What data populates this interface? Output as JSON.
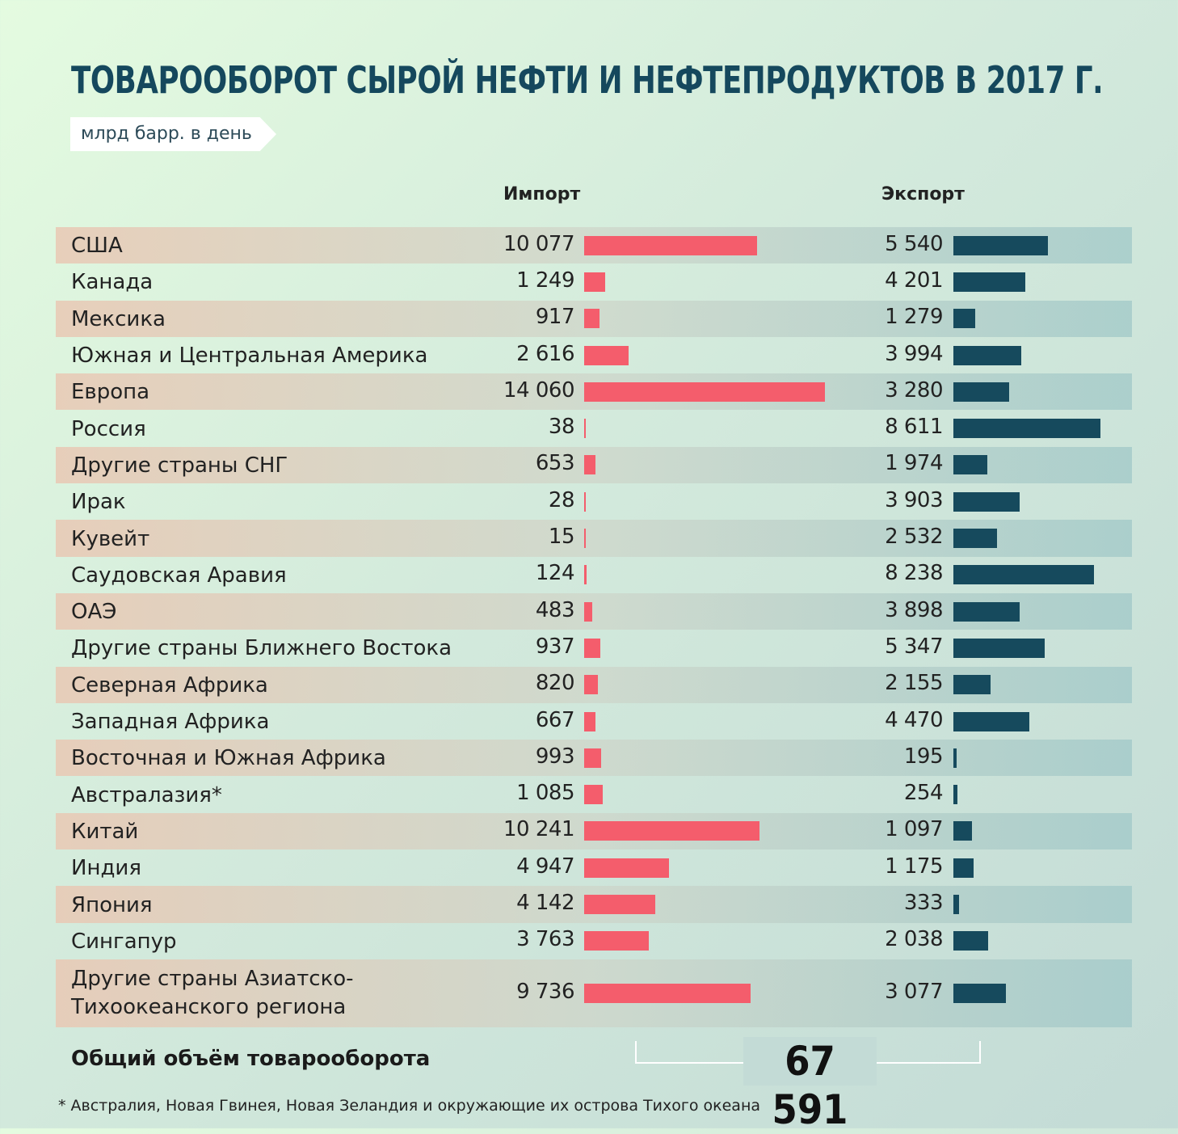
{
  "header": {
    "title": "ТОВАРООБОРОТ СЫРОЙ НЕФТИ И НЕФТЕПРОДУКТОВ В 2017 Г.",
    "unit": "млрд барр. в день",
    "import_label": "Импорт",
    "export_label": "Экспорт"
  },
  "chart_data": {
    "type": "bar",
    "orientation": "horizontal",
    "title": "ТОВАРООБОРОТ СЫРОЙ НЕФТИ И НЕФТЕПРОДУКТОВ В 2017 Г.",
    "unit": "млрд барр. в день",
    "categories": [
      "США",
      "Канада",
      "Мексика",
      "Южная и Центральная Америка",
      "Европа",
      "Россия",
      "Другие страны СНГ",
      "Ирак",
      "Кувейт",
      "Саудовская Аравия",
      "ОАЭ",
      "Другие страны Ближнего Востока",
      "Северная Африка",
      "Западная Африка",
      "Восточная и Южная Африка",
      "Австралазия*",
      "Китай",
      "Индия",
      "Япония",
      "Сингапур",
      "Другие страны Азиатско-Тихоокеанского региона"
    ],
    "series": [
      {
        "name": "Импорт",
        "values": [
          10077,
          1249,
          917,
          2616,
          14060,
          38,
          653,
          28,
          15,
          124,
          483,
          937,
          820,
          667,
          993,
          1085,
          10241,
          4947,
          4142,
          3763,
          9736
        ],
        "labels": [
          "10 077",
          "1 249",
          "917",
          "2 616",
          "14 060",
          "38",
          "653",
          "28",
          "15",
          "124",
          "483",
          "937",
          "820",
          "667",
          "993",
          "1 085",
          "10 241",
          "4 947",
          "4 142",
          "3 763",
          "9 736"
        ]
      },
      {
        "name": "Экспорт",
        "values": [
          5540,
          4201,
          1279,
          3994,
          3280,
          8611,
          1974,
          3903,
          2532,
          8238,
          3898,
          5347,
          2155,
          4470,
          195,
          254,
          1097,
          1175,
          333,
          2038,
          3077
        ],
        "labels": [
          "5 540",
          "4 201",
          "1 279",
          "3 994",
          "3 280",
          "8 611",
          "1 974",
          "3 903",
          "2 532",
          "8 238",
          "3 898",
          "5 347",
          "2 155",
          "4 470",
          "195",
          "254",
          "1 097",
          "1 175",
          "333",
          "2 038",
          "3 077"
        ]
      }
    ],
    "colors": {
      "import": "#f45d6c",
      "export": "#164a5d"
    }
  },
  "total": {
    "label": "Общий объём товарооборота",
    "value": "67 591"
  },
  "footnote": "* Австралия, Новая Гвинея, Новая Зеландия и окружающие их острова Тихого океана"
}
